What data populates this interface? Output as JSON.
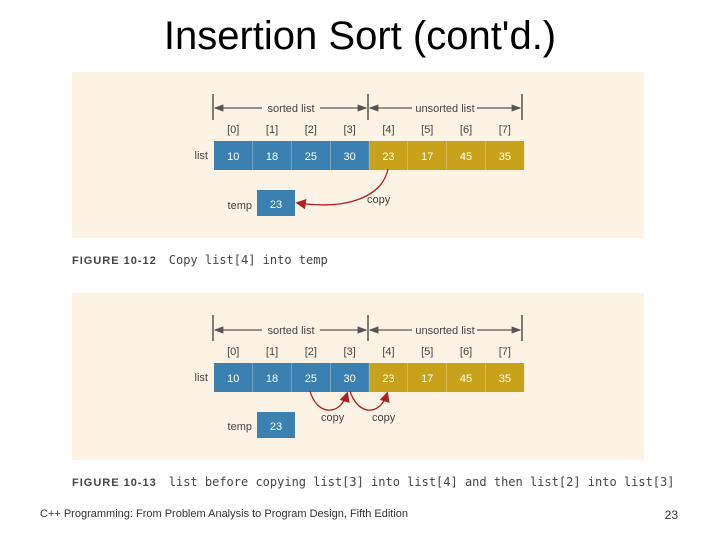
{
  "slide": {
    "title": "Insertion Sort (cont'd.)",
    "footer": "C++ Programming: From Problem Analysis to Program Design, Fifth Edition",
    "page_number": "23"
  },
  "figures": [
    {
      "sorted_label": "sorted list",
      "unsorted_label": "unsorted list",
      "indices": [
        "[0]",
        "[1]",
        "[2]",
        "[3]",
        "[4]",
        "[5]",
        "[6]",
        "[7]"
      ],
      "list_label": "list",
      "values": [
        "10",
        "18",
        "25",
        "30",
        "23",
        "17",
        "45",
        "35"
      ],
      "sorted_count": 4,
      "temp_label": "temp",
      "temp_value": "23",
      "copy_labels": [
        "copy"
      ],
      "caption_number": "FIGURE 10-12",
      "caption_text": "Copy list[4] into temp"
    },
    {
      "sorted_label": "sorted list",
      "unsorted_label": "unsorted list",
      "indices": [
        "[0]",
        "[1]",
        "[2]",
        "[3]",
        "[4]",
        "[5]",
        "[6]",
        "[7]"
      ],
      "list_label": "list",
      "values": [
        "10",
        "18",
        "25",
        "30",
        "23",
        "17",
        "45",
        "35"
      ],
      "sorted_count": 4,
      "temp_label": "temp",
      "temp_value": "23",
      "copy_labels": [
        "copy",
        "copy"
      ],
      "caption_number": "FIGURE 10-13",
      "caption_text": "list before copying list[3] into list[4] and then list[2] into list[3]"
    }
  ],
  "colors": {
    "sorted_cell": "#3a80b0",
    "unsorted_cell": "#c9a21c",
    "panel_bg": "#fdf3e4",
    "arrow": "#b02020",
    "label_text": "#444444"
  }
}
